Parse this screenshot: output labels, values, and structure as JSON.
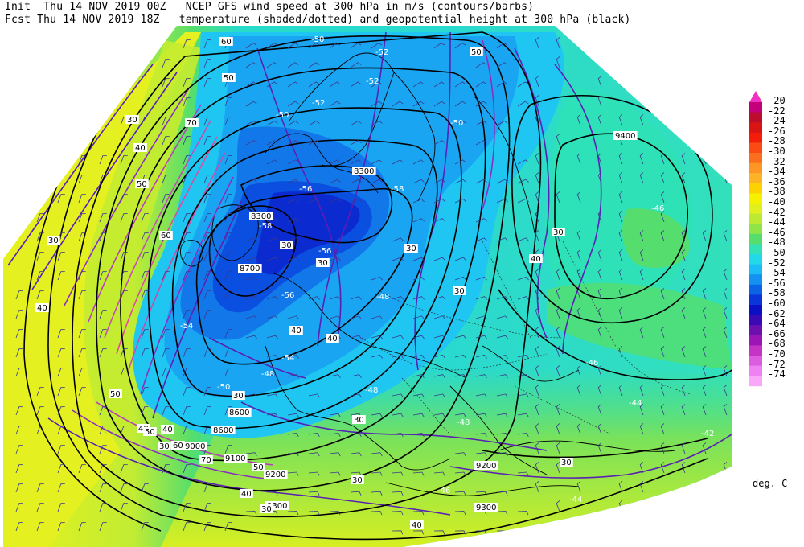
{
  "header": {
    "init_line": "Init  Thu 14 NOV 2019 00Z   NCEP GFS wind speed at 300 hPa in m/s (contours/barbs)",
    "fcst_line": "Fcst Thu 14 NOV 2019 18Z   temperature (shaded/dotted) and geopotential height at 300 hPa (black)"
  },
  "colorbar": {
    "labels": [
      "-20",
      "-22",
      "-24",
      "-26",
      "-28",
      "-30",
      "-32",
      "-34",
      "-36",
      "-38",
      "-40",
      "-42",
      "-44",
      "-46",
      "-48",
      "-50",
      "-52",
      "-54",
      "-56",
      "-58",
      "-60",
      "-62",
      "-64",
      "-66",
      "-68",
      "-70",
      "-72",
      "-74"
    ],
    "colors": [
      "#c3007a",
      "#bc0d2e",
      "#d81414",
      "#f21e0a",
      "#fa4b14",
      "#fb6e1d",
      "#fd9625",
      "#fdb326",
      "#fdd200",
      "#f6f100",
      "#e2ef1e",
      "#bcea33",
      "#90e447",
      "#55de6d",
      "#32e2b5",
      "#23d9e9",
      "#1cbcf7",
      "#1491f1",
      "#0b63e6",
      "#0a35d8",
      "#0b10c4",
      "#3c0ab4",
      "#6e10b0",
      "#9b16b4",
      "#c534c5",
      "#dc5cdf",
      "#f081f2",
      "#faa6f9"
    ],
    "top_arrow_color": "#f032c0",
    "units": "deg. C"
  },
  "map_labels": {
    "height": [
      "8300",
      "8300",
      "8700",
      "8600",
      "8600",
      "9000",
      "9100",
      "9200",
      "9300",
      "9400",
      "9200",
      "9300"
    ],
    "wind": [
      "30",
      "40",
      "50",
      "60",
      "70",
      "60",
      "50",
      "40",
      "30",
      "50",
      "40",
      "30",
      "40",
      "50",
      "60",
      "70",
      "40",
      "50",
      "30",
      "40",
      "30",
      "40",
      "30",
      "30",
      "30",
      "40",
      "30",
      "30",
      "50",
      "40",
      "30",
      "30",
      "30"
    ],
    "temp": [
      "-50",
      "-52",
      "-50",
      "-52",
      "-52",
      "-54",
      "-56",
      "-58",
      "-58",
      "-56",
      "-56",
      "-54",
      "-50",
      "-48",
      "-46",
      "-44",
      "-42",
      "-48",
      "-50",
      "-46",
      "-44",
      "-48",
      "-46",
      "-48"
    ]
  }
}
